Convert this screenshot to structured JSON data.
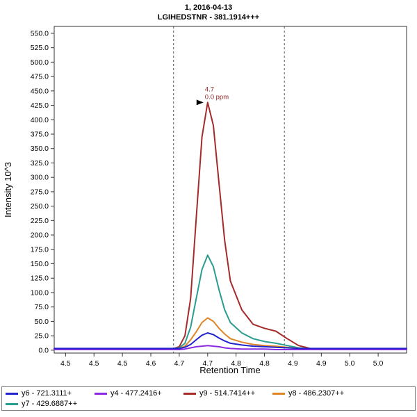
{
  "chart_data": {
    "type": "line",
    "title": "1, 2016-04-13",
    "subtitle": "LGIHEDSTNR - 381.1914+++",
    "xlabel": "Retention Time",
    "ylabel": "Intensity 10^3",
    "xlim": [
      4.43,
      5.05
    ],
    "ylim": [
      -5,
      562
    ],
    "grid": false,
    "legend_position": "bottom",
    "x_ticks": {
      "values": [
        4.45,
        4.5,
        4.55,
        4.6,
        4.65,
        4.7,
        4.75,
        4.8,
        4.85,
        4.9,
        4.95,
        5.0
      ],
      "labels": [
        "4.5",
        "4.5",
        "4.5",
        "4.6",
        "4.7",
        "4.7",
        "4.8",
        "4.8",
        "4.9",
        "4.9",
        "5.0",
        "5.0"
      ]
    },
    "y_ticks": [
      0,
      25,
      50,
      75,
      100,
      125,
      150,
      175,
      200,
      225,
      250,
      275,
      300,
      325,
      350,
      375,
      400,
      425,
      450,
      475,
      500,
      525,
      550
    ],
    "x": [
      4.43,
      4.5,
      4.55,
      4.6,
      4.62,
      4.64,
      4.65,
      4.66,
      4.67,
      4.68,
      4.69,
      4.7,
      4.71,
      4.72,
      4.73,
      4.74,
      4.76,
      4.78,
      4.8,
      4.82,
      4.84,
      4.86,
      4.88,
      4.92,
      4.96,
      5.0,
      5.05
    ],
    "series": [
      {
        "name": "y6 - 721.3111+",
        "color": "#2323CD",
        "values": [
          3,
          3,
          3,
          3,
          3,
          3,
          3,
          5,
          10,
          18,
          26,
          30,
          27,
          21,
          16,
          12,
          9,
          7,
          6,
          5,
          4,
          3,
          3,
          3,
          3,
          3,
          3
        ]
      },
      {
        "name": "y4 - 477.2416+",
        "color": "#8A2BE2",
        "values": [
          1,
          1,
          1,
          1,
          1,
          1,
          1,
          2,
          4,
          6,
          7,
          8,
          7,
          6,
          4,
          3,
          2,
          2,
          2,
          1,
          1,
          1,
          1,
          1,
          1,
          1,
          1
        ]
      },
      {
        "name": "y9 - 514.7414++",
        "color": "#A52A2A",
        "values": [
          2,
          2,
          2,
          2,
          2,
          3,
          6,
          25,
          90,
          230,
          370,
          430,
          390,
          290,
          190,
          120,
          70,
          45,
          38,
          33,
          20,
          8,
          3,
          2,
          2,
          2,
          2
        ]
      },
      {
        "name": "y8 - 486.2307++",
        "color": "#E08428",
        "values": [
          2,
          2,
          2,
          2,
          2,
          2,
          3,
          7,
          18,
          32,
          48,
          56,
          50,
          38,
          28,
          20,
          14,
          10,
          8,
          7,
          5,
          3,
          2,
          2,
          2,
          2,
          2
        ]
      },
      {
        "name": "y7 - 429.6887++",
        "color": "#2A9D8F",
        "values": [
          2,
          2,
          2,
          2,
          2,
          3,
          4,
          12,
          40,
          90,
          140,
          165,
          145,
          105,
          70,
          48,
          30,
          20,
          15,
          12,
          8,
          4,
          2,
          2,
          2,
          2,
          2
        ]
      }
    ],
    "draw_order": [
      2,
      4,
      3,
      1,
      0
    ],
    "peak_boundaries": [
      4.64,
      4.835
    ],
    "annotation": {
      "rt_label": "4.7",
      "ppm_label": "0.0 ppm",
      "x": 4.7,
      "y": 430,
      "color": "#8B2323"
    }
  }
}
